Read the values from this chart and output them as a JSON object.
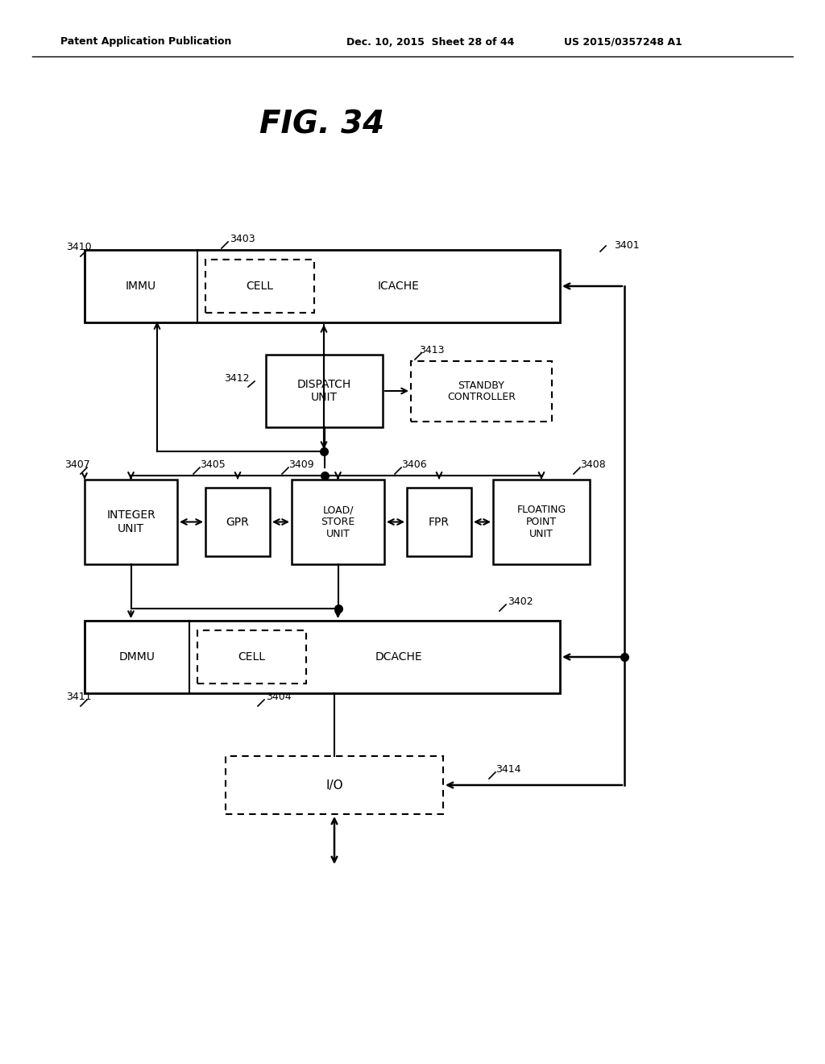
{
  "title": "FIG. 34",
  "header_left": "Patent Application Publication",
  "header_center": "Dec. 10, 2015  Sheet 28 of 44",
  "header_right": "US 2015/0357248 A1",
  "background_color": "#ffffff",
  "text_color": "#000000"
}
